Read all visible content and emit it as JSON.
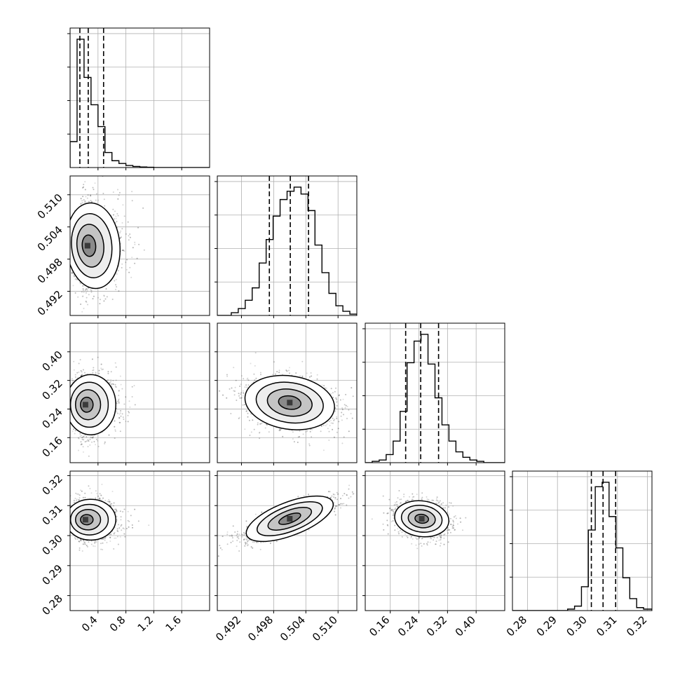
{
  "chart_data": {
    "type": "corner",
    "parameters": [
      {
        "id": "p0",
        "range": [
          0.0,
          2.0
        ],
        "ticks": [
          0.4,
          0.8,
          1.2,
          1.6
        ],
        "tick_labels": [
          "0.4",
          "0.8",
          "1.2",
          "1.6"
        ],
        "quantiles": [
          0.14,
          0.26,
          0.48
        ],
        "hist_bins": [
          0.0,
          0.1,
          0.2,
          0.3,
          0.4,
          0.5,
          0.6,
          0.7,
          0.8,
          0.9,
          1.0,
          1.1,
          1.2,
          1.3,
          1.4,
          1.5,
          1.6,
          1.7,
          1.8,
          1.9,
          2.0
        ],
        "hist_counts": [
          0.19,
          0.94,
          0.66,
          0.46,
          0.3,
          0.11,
          0.05,
          0.03,
          0.015,
          0.008,
          0.004,
          0.002,
          0.0,
          0.0,
          0.0,
          0.0,
          0.0,
          0.0,
          0.0,
          0.0
        ]
      },
      {
        "id": "p1",
        "range": [
          0.4875,
          0.5135
        ],
        "ticks": [
          0.492,
          0.498,
          0.504,
          0.51
        ],
        "tick_labels": [
          "0.492",
          "0.498",
          "0.504",
          "0.510"
        ],
        "quantiles": [
          0.4972,
          0.5011,
          0.5045
        ],
        "hist_bins": [
          0.4875,
          0.4888,
          0.4901,
          0.4914,
          0.4927,
          0.494,
          0.4953,
          0.4966,
          0.4979,
          0.4992,
          0.5005,
          0.5018,
          0.5031,
          0.5044,
          0.5057,
          0.507,
          0.5083,
          0.5096,
          0.5109,
          0.5122,
          0.5135
        ],
        "hist_counts": [
          0.0,
          0.0,
          0.02,
          0.05,
          0.11,
          0.2,
          0.38,
          0.55,
          0.72,
          0.84,
          0.9,
          0.93,
          0.88,
          0.76,
          0.51,
          0.31,
          0.16,
          0.07,
          0.03,
          0.01
        ]
      },
      {
        "id": "p2",
        "range": [
          0.09,
          0.48
        ],
        "ticks": [
          0.16,
          0.24,
          0.32,
          0.4
        ],
        "tick_labels": [
          "0.16",
          "0.24",
          "0.32",
          "0.40"
        ],
        "quantiles": [
          0.203,
          0.245,
          0.295
        ],
        "hist_bins": [
          0.09,
          0.1095,
          0.129,
          0.1485,
          0.168,
          0.1875,
          0.207,
          0.2265,
          0.246,
          0.2655,
          0.285,
          0.3045,
          0.324,
          0.3435,
          0.363,
          0.3825,
          0.402,
          0.4215,
          0.441,
          0.4605,
          0.48
        ],
        "hist_counts": [
          0.0,
          0.01,
          0.02,
          0.06,
          0.16,
          0.38,
          0.74,
          0.9,
          0.95,
          0.73,
          0.48,
          0.28,
          0.16,
          0.08,
          0.04,
          0.02,
          0.01,
          0.0,
          0.0,
          0.0
        ]
      },
      {
        "id": "p3",
        "range": [
          0.275,
          0.3215
        ],
        "ticks": [
          0.28,
          0.29,
          0.3,
          0.31,
          0.32
        ],
        "tick_labels": [
          "0.28",
          "0.29",
          "0.30",
          "0.31",
          "0.32"
        ],
        "quantiles": [
          0.3013,
          0.3052,
          0.3094
        ],
        "hist_bins": [
          0.275,
          0.2773,
          0.2796,
          0.2819,
          0.2842,
          0.2865,
          0.2888,
          0.2911,
          0.2934,
          0.2957,
          0.298,
          0.3003,
          0.3026,
          0.3049,
          0.3072,
          0.3095,
          0.3118,
          0.3141,
          0.3164,
          0.3187,
          0.3215
        ],
        "hist_counts": [
          0.0,
          0.0,
          0.0,
          0.0,
          0.0,
          0.0,
          0.0,
          0.0,
          0.01,
          0.03,
          0.16,
          0.54,
          0.83,
          0.86,
          0.63,
          0.42,
          0.22,
          0.08,
          0.02,
          0.01
        ]
      }
    ],
    "panels_2d": [
      {
        "x": "p0",
        "y": "p1",
        "center": [
          0.25,
          0.5005
        ],
        "spread": [
          0.16,
          0.004
        ],
        "rho": 0.05,
        "skew_x": true
      },
      {
        "x": "p0",
        "y": "p2",
        "center": [
          0.22,
          0.252
        ],
        "spread": [
          0.15,
          0.042
        ],
        "rho": 0.0,
        "skew_x": true
      },
      {
        "x": "p1",
        "y": "p2",
        "center": [
          0.501,
          0.258
        ],
        "spread": [
          0.0042,
          0.038
        ],
        "rho": -0.25,
        "skew_x": false
      },
      {
        "x": "p0",
        "y": "p3",
        "center": [
          0.22,
          0.3053
        ],
        "spread": [
          0.15,
          0.0034
        ],
        "rho": 0.0,
        "skew_x": true
      },
      {
        "x": "p1",
        "y": "p3",
        "center": [
          0.501,
          0.3056
        ],
        "spread": [
          0.0043,
          0.0036
        ],
        "rho": 0.82,
        "skew_x": false
      },
      {
        "x": "p2",
        "y": "p3",
        "center": [
          0.248,
          0.3056
        ],
        "spread": [
          0.038,
          0.003
        ],
        "rho": -0.2,
        "skew_x": false
      }
    ],
    "contour_levels_sigma": [
      0.5,
      1.0,
      1.5,
      2.0
    ],
    "contour_fills": [
      "#ffffff",
      "#ededed",
      "#c4c4c4",
      "#8a8a8a",
      "#3a3a3a"
    ],
    "grid": true
  }
}
